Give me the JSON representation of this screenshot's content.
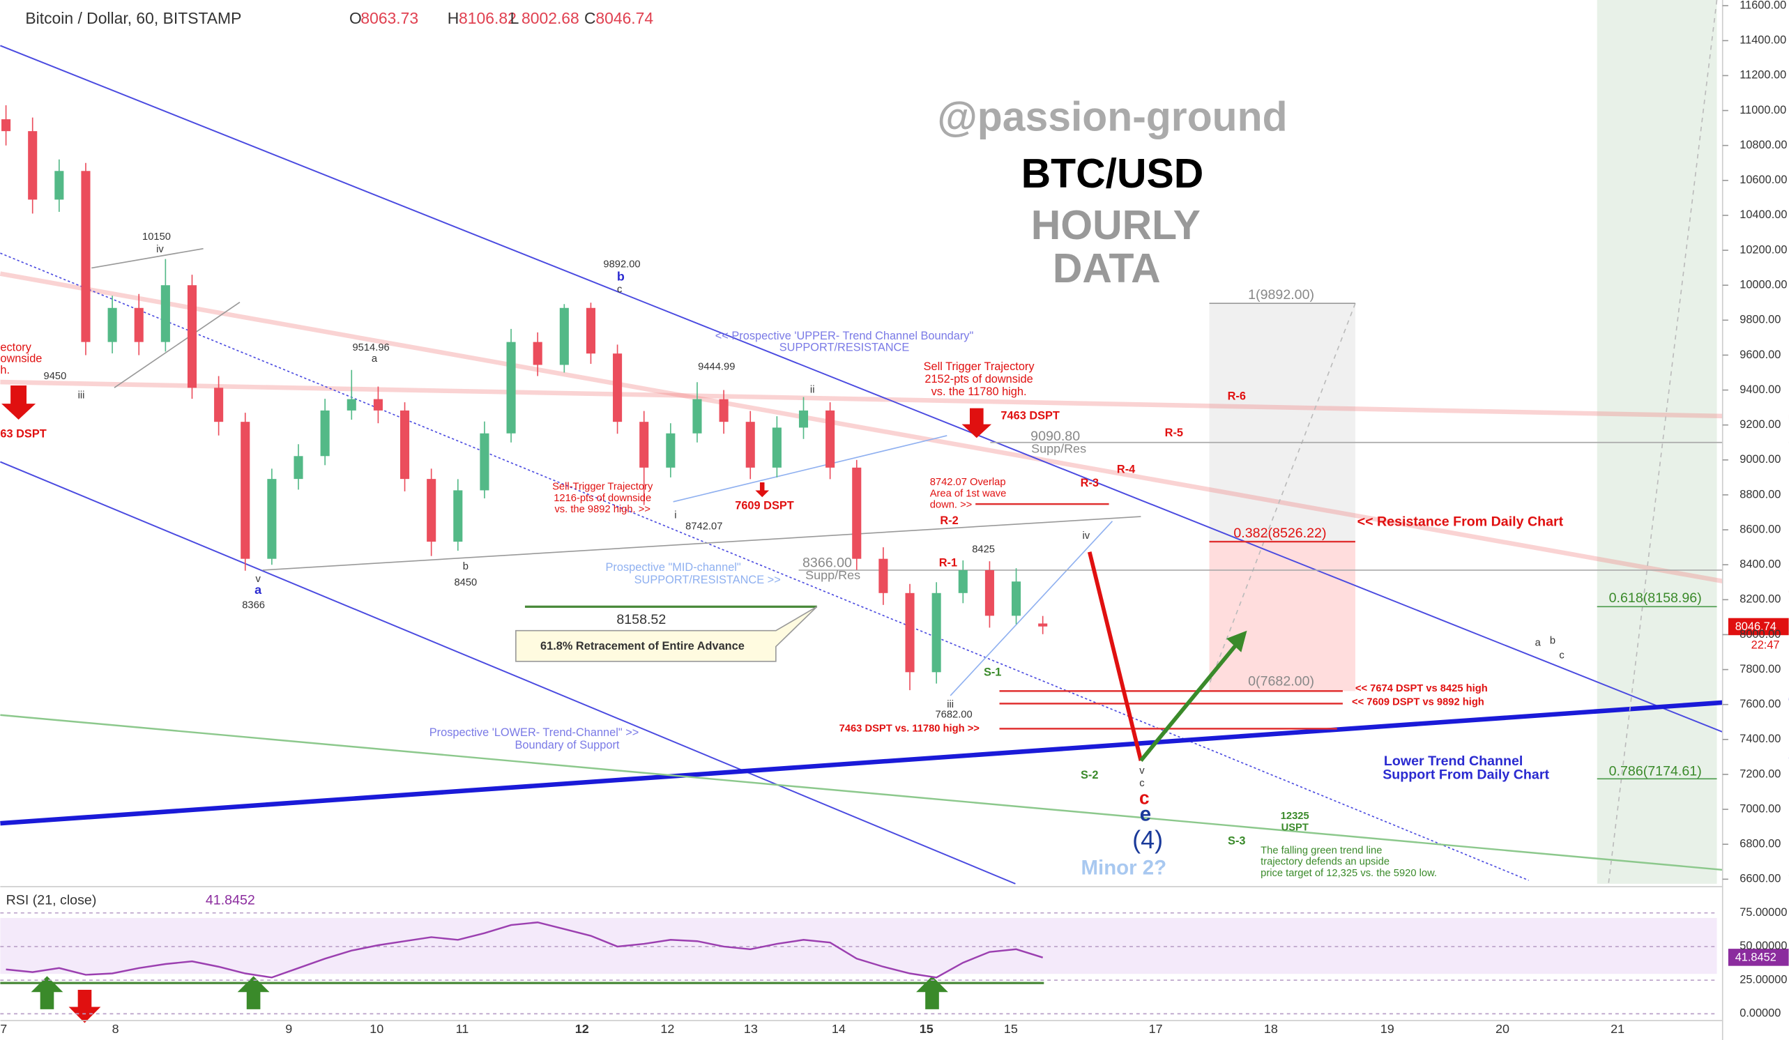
{
  "chart_data": [
    {
      "type": "candlestick",
      "title": "Bitcoin / Dollar, 60, BITSTAMP",
      "ohlc": [
        {
          "label": "O",
          "value": 8063.73
        },
        {
          "label": "H",
          "value": 8106.82
        },
        {
          "label": "L",
          "value": 8002.68
        },
        {
          "label": "C",
          "value": 8046.74
        }
      ],
      "last_price": 8046.74,
      "countdown": "22:47",
      "open": [
        10950,
        10882,
        10490,
        10654,
        9675,
        9870,
        9675,
        10000,
        9413,
        9218,
        8434,
        8891,
        9022,
        9283,
        9348,
        9283,
        8891,
        8532,
        8826,
        9152,
        9675,
        9544,
        9870,
        9609,
        9218,
        8956,
        9152,
        9348,
        9218,
        8956,
        9185,
        9283,
        8956,
        8434,
        8238,
        7785,
        8238,
        8369,
        8108,
        8063.73
      ],
      "high": [
        11030,
        10960,
        10720,
        10700,
        9940,
        9950,
        10150,
        10060,
        9480,
        9270,
        8950,
        9090,
        9350,
        9514.96,
        9420,
        9330,
        8950,
        8890,
        9220,
        9750,
        9730,
        9892,
        9900,
        9660,
        9280,
        9210,
        9444.99,
        9400,
        9280,
        9250,
        9360,
        9330,
        9000,
        8500,
        8290,
        8300,
        8425,
        8420,
        8380,
        8106.82
      ],
      "low": [
        10800,
        10410,
        10420,
        9600,
        9610,
        9600,
        9620,
        9350,
        9140,
        8366,
        8400,
        8830,
        8970,
        9230,
        9210,
        8820,
        8450,
        8480,
        8780,
        9100,
        9480,
        9500,
        9550,
        9150,
        8742.07,
        8900,
        9100,
        9150,
        8890,
        8900,
        9120,
        8890,
        8370,
        8170,
        7682,
        7720,
        8180,
        8040,
        8060,
        8002.68
      ],
      "close": [
        10882,
        10490,
        10654,
        9675,
        9870,
        9675,
        10000,
        9413,
        9218,
        8434,
        8891,
        9022,
        9283,
        9348,
        9283,
        8891,
        8532,
        8826,
        9152,
        9675,
        9544,
        9870,
        9609,
        9218,
        8956,
        9152,
        9348,
        9218,
        8956,
        9185,
        9283,
        8956,
        8434,
        8238,
        7785,
        8238,
        8369,
        8108,
        8304,
        8046.74
      ],
      "up_color": "#53b987",
      "down_color": "#eb4d5c",
      "ylim": [
        6600,
        11600
      ],
      "yticks": [
        {
          "value": 6600,
          "label": "6600.00"
        },
        {
          "value": 6800,
          "label": "6800.00"
        },
        {
          "value": 7000,
          "label": "7000.00"
        },
        {
          "value": 7200,
          "label": "7200.00"
        },
        {
          "value": 7400,
          "label": "7400.00"
        },
        {
          "value": 7600,
          "label": "7600.00"
        },
        {
          "value": 7800,
          "label": "7800.00"
        },
        {
          "value": 8000,
          "label": "8000.00"
        },
        {
          "value": 8200,
          "label": "8200.00"
        },
        {
          "value": 8400,
          "label": "8400.00"
        },
        {
          "value": 8600,
          "label": "8600.00"
        },
        {
          "value": 8800,
          "label": "8800.00"
        },
        {
          "value": 9000,
          "label": "9000.00"
        },
        {
          "value": 9200,
          "label": "9200.00"
        },
        {
          "value": 9400,
          "label": "9400.00"
        },
        {
          "value": 9600,
          "label": "9600.00"
        },
        {
          "value": 9800,
          "label": "9800.00"
        },
        {
          "value": 10000,
          "label": "10000.00"
        },
        {
          "value": 10200,
          "label": "10200.00"
        },
        {
          "value": 10400,
          "label": "10400.00"
        },
        {
          "value": 10600,
          "label": "10600.00"
        },
        {
          "value": 10800,
          "label": "10800.00"
        },
        {
          "value": 11000,
          "label": "11000.00"
        },
        {
          "value": 11200,
          "label": "11200.00"
        },
        {
          "value": 11400,
          "label": "11400.00"
        },
        {
          "value": 11600,
          "label": "11600.00"
        }
      ],
      "xtick_labels": [
        "7",
        "8",
        "9",
        "10",
        "11",
        "12",
        "12",
        "13",
        "14",
        "15",
        "15",
        "17",
        "18",
        "19",
        "20",
        "21"
      ],
      "annotations": [
        "@passion-ground",
        "BTC/USD",
        "HOURLY",
        "DATA",
        "10150",
        "iv",
        "9450",
        "iii",
        "9514.96",
        "a",
        "9892.00",
        "b",
        "c",
        "9444.99",
        "ii",
        "i",
        "8742.07",
        "b",
        "8450",
        "v",
        "a",
        "8366",
        "8425",
        "iii",
        "7682.00",
        "<< Prospective 'UPPER- Trend Channel Boundary\"",
        "SUPPORT/RESISTANCE",
        "Sell Trigger Trajectory",
        "2152-pts of downside",
        "vs. the 11780 high.",
        "7463 DSPT",
        "Sell-Trigger Trajectory",
        "1216-pts of downside",
        "vs. the 9892 high. >>",
        "7609 DSPT",
        "8742.07 Overlap",
        "Area of 1st wave",
        "down. >>",
        "Prospective \"MID-channel\"",
        "SUPPORT/RESISTANCE >>",
        "8366.00",
        "Supp/Res",
        "9090.80",
        "Supp/Res",
        "8158.52",
        "61.8% Retracement of Entire Advance",
        "R-1",
        "R-2",
        "R-3",
        "R-4",
        "R-5",
        "R-6",
        "1(9892.00)",
        "0.382(8526.22)",
        "<<   Resistance From Daily Chart",
        "0.618(8158.96)",
        "0(7682.00)",
        "<< 7674 DSPT vs 8425 high",
        "<< 7609 DSPT vs 9892 high",
        "7463 DSPT vs. 11780 high >>",
        "S-1",
        "S-2",
        "S-3",
        "Prospective 'LOWER- Trend-Channel\" >>",
        "Boundary of Support",
        "Lower Trend Channel",
        "Support From Daily Chart",
        "0.786(7174.61)",
        "v",
        "c",
        "c",
        "e",
        "(4)",
        "Minor 2?",
        "12325",
        "USPT",
        "The falling green trend line",
        "trajectory defends an upside",
        "price target of 12,325 vs. the 5920 low.",
        "a",
        "b",
        "c",
        "ectory",
        "ownside",
        "h.",
        "63 DSPT",
        "iv"
      ]
    },
    {
      "type": "line",
      "title": "RSI (21, close)",
      "last_value": 41.8452,
      "color": "#9b3fb0",
      "values": [
        33,
        31,
        34,
        29,
        30,
        34,
        37,
        39,
        35,
        30,
        27,
        34,
        41,
        47,
        51,
        54,
        57,
        55,
        60,
        66,
        68,
        63,
        58,
        50,
        52,
        55,
        54,
        50,
        48,
        52,
        55,
        53,
        41,
        35,
        30,
        27,
        38,
        46,
        48,
        41.8452
      ],
      "ylim": [
        0,
        95
      ],
      "yticks": [
        {
          "value": 0,
          "label": "0.00000"
        },
        {
          "value": 25,
          "label": "25.00000"
        },
        {
          "value": 50,
          "label": "50.00000"
        },
        {
          "value": 75,
          "label": "75.00000"
        }
      ]
    }
  ]
}
